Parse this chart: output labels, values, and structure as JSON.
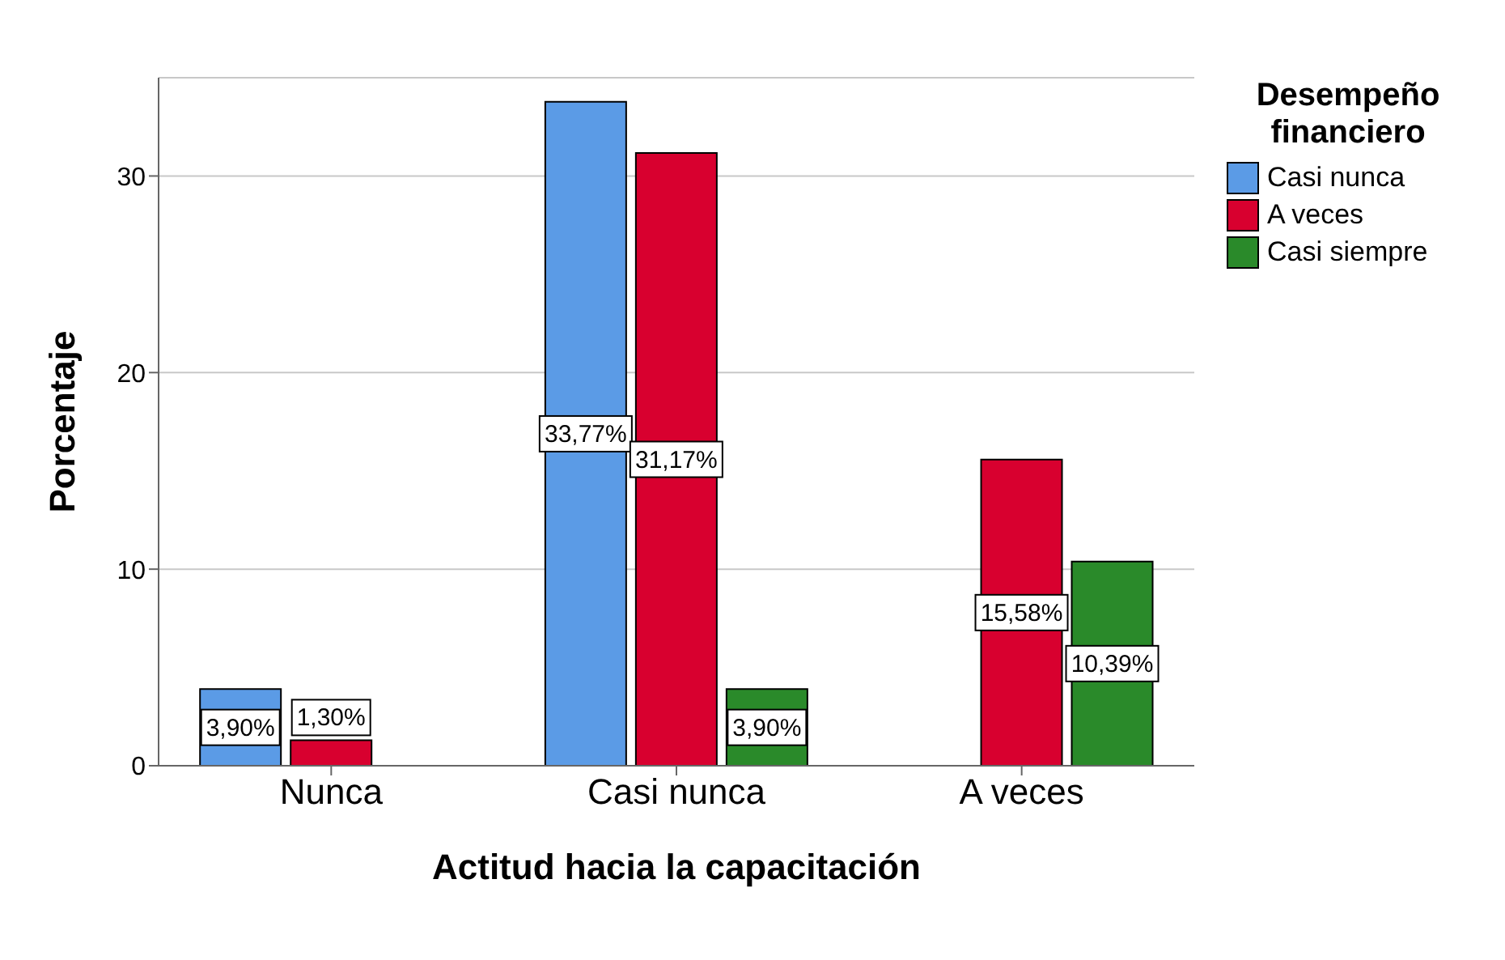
{
  "chart_data": {
    "type": "bar",
    "xlabel": "Actitud hacia la capacitación",
    "ylabel": "Porcentaje",
    "legend_title": "Desempeño financiero",
    "categories": [
      "Nunca",
      "Casi nunca",
      "A veces"
    ],
    "series": [
      {
        "name": "Casi nunca",
        "color": "#5b9be6",
        "values": [
          3.9,
          33.77,
          null
        ],
        "value_labels": [
          "3,90%",
          "33,77%",
          null
        ]
      },
      {
        "name": "A veces",
        "color": "#d8002f",
        "values": [
          1.3,
          31.17,
          15.58
        ],
        "value_labels": [
          "1,30%",
          "31,17%",
          "15,58%"
        ]
      },
      {
        "name": "Casi siempre",
        "color": "#2a8a2a",
        "values": [
          null,
          3.9,
          10.39
        ],
        "value_labels": [
          null,
          "3,90%",
          "10,39%"
        ]
      }
    ],
    "ylim": [
      0,
      35
    ],
    "yticks": [
      0,
      10,
      20,
      30
    ],
    "grid": "y",
    "legend": "top right"
  }
}
